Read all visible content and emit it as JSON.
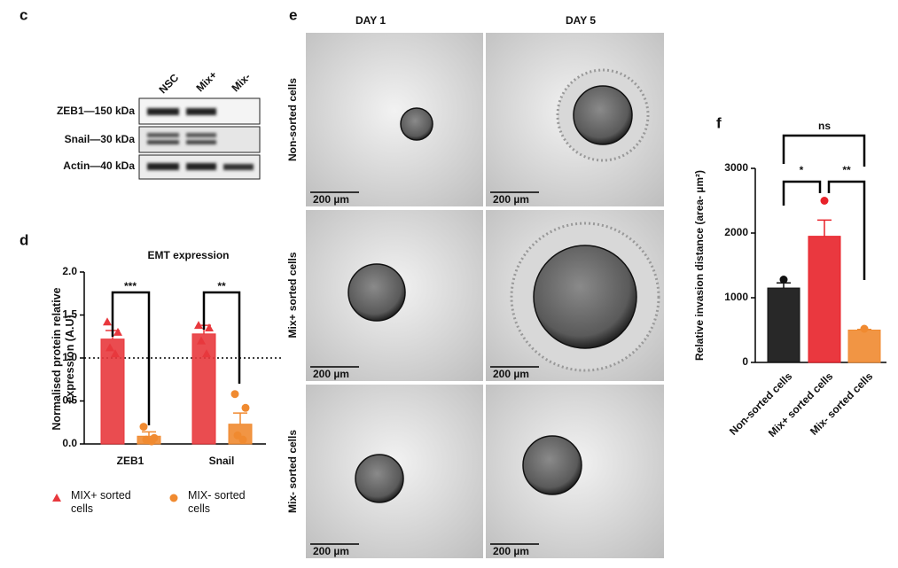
{
  "panel_labels": [
    "c",
    "d",
    "e",
    "f"
  ],
  "western_blot": {
    "lanes": [
      "NSC",
      "Mix+",
      "Mix-"
    ],
    "rows": [
      "ZEB1—150 kDa",
      "Snail—30 kDa",
      "Actin—40 kDa"
    ]
  },
  "microscopy": {
    "columns": [
      "DAY 1",
      "DAY 5"
    ],
    "rows": [
      "Non-sorted cells",
      "Mix+ sorted cells",
      "Mix- sorted cells"
    ],
    "scale_bar": "200 µm"
  },
  "chart_data": [
    {
      "type": "bar",
      "title": "EMT expression",
      "y_label": "Normalised protein relative expression (A.U)",
      "categories": [
        "ZEB1",
        "Snail"
      ],
      "series": [
        {
          "name": "MIX+ sorted cells",
          "color": "#e8383d",
          "marker": "triangle",
          "values": [
            1.22,
            1.28
          ],
          "errors": [
            0.1,
            0.1
          ],
          "points": [
            [
              1.42,
              1.3,
              1.12,
              1.05
            ],
            [
              1.38,
              1.35,
              1.2,
              1.05
            ]
          ]
        },
        {
          "name": "MIX- sorted cells",
          "color": "#f08a30",
          "marker": "circle",
          "values": [
            0.09,
            0.23
          ],
          "errors": [
            0.05,
            0.13
          ],
          "points": [
            [
              0.2,
              0.07,
              0.05,
              0.03
            ],
            [
              0.58,
              0.42,
              0.1,
              0.05
            ]
          ]
        }
      ],
      "ylim": [
        0,
        2
      ],
      "yticks": [
        {
          "value": 0,
          "label": "0.0"
        },
        0.5,
        {
          "value": 1,
          "label": "1.0"
        },
        1.5,
        {
          "value": 2,
          "label": "2.0"
        }
      ],
      "reference_line": 1,
      "annotations": [
        "***",
        "**"
      ]
    },
    {
      "type": "bar",
      "y_label": "Relative invasion distance (area- µm²)",
      "categories": [
        "Non-sorted cells",
        "Mix+ sorted cells",
        "Mix- sorted cells"
      ],
      "values": [
        1150,
        1950,
        500
      ],
      "errors": [
        80,
        250,
        10
      ],
      "points": [
        1280,
        2500,
        520
      ],
      "colors": [
        "#111111",
        "#e8222a",
        "#f08a30"
      ],
      "ylim": [
        0,
        3000
      ],
      "yticks": [
        0,
        1000,
        2000,
        3000
      ],
      "annotations": [
        "ns",
        "*",
        "**"
      ]
    }
  ]
}
